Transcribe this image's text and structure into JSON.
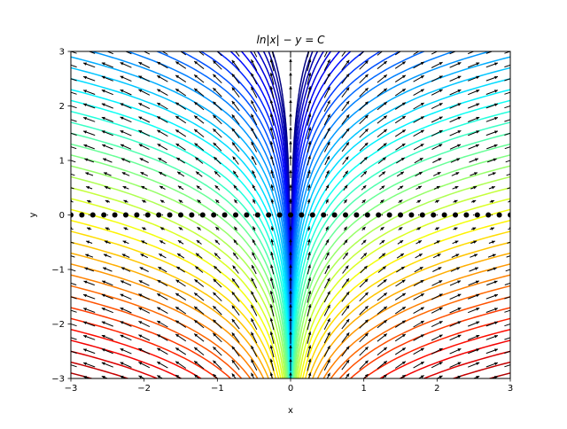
{
  "chart_data": {
    "type": "contour",
    "title": "ln|x| − y = C",
    "xlabel": "x",
    "ylabel": "y",
    "xlim": [
      -3,
      3
    ],
    "ylim": [
      -3,
      3
    ],
    "x_ticks": [
      -3,
      -2,
      -1,
      0,
      1,
      2,
      3
    ],
    "y_ticks": [
      -3,
      -2,
      -1,
      0,
      1,
      2,
      3
    ],
    "x_tick_labels": [
      "−3",
      "−2",
      "−1",
      "0",
      "1",
      "2",
      "3"
    ],
    "y_tick_labels": [
      "−3",
      "−2",
      "−1",
      "0",
      "1",
      "2",
      "3"
    ],
    "grid": false,
    "legend": "none",
    "colormap": "jet",
    "contour_levels": {
      "min": -4.4,
      "max": 4.4,
      "count": 45
    },
    "quiver_field": {
      "dx": "x",
      "dy": "1",
      "grid_step": 0.25
    },
    "marker_line": {
      "y": 0,
      "x_step": 0.15,
      "marker": "circle",
      "color": "#000000"
    },
    "colors": {
      "axes": "#000000",
      "arrows": "#000000",
      "background": "#ffffff"
    }
  }
}
